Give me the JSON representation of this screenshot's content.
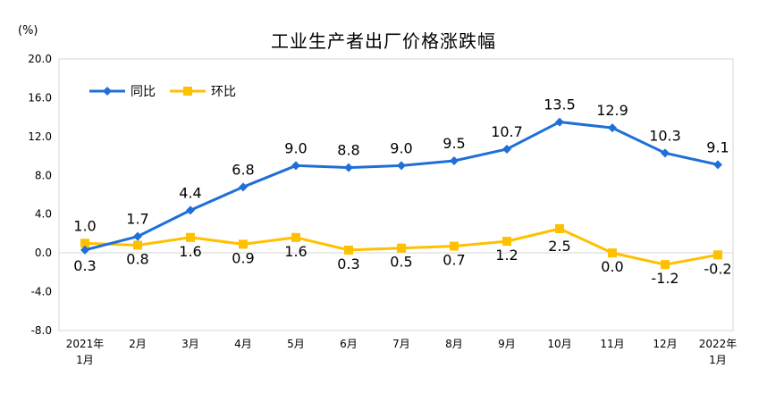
{
  "chart_data": {
    "type": "line",
    "title": "工业生产者出厂价格涨跌幅",
    "unit_label": "(%)",
    "categories": [
      [
        "2021年",
        "1月"
      ],
      [
        "2月"
      ],
      [
        "3月"
      ],
      [
        "4月"
      ],
      [
        "5月"
      ],
      [
        "6月"
      ],
      [
        "7月"
      ],
      [
        "8月"
      ],
      [
        "9月"
      ],
      [
        "10月"
      ],
      [
        "11月"
      ],
      [
        "12月"
      ],
      [
        "2022年",
        "1月"
      ]
    ],
    "ylim": [
      -8,
      20
    ],
    "yticks": [
      "20.0",
      "16.0",
      "12.0",
      "8.0",
      "4.0",
      "0.0",
      "-4.0",
      "-8.0"
    ],
    "ytick_values": [
      20,
      16,
      12,
      8,
      4,
      0,
      -4,
      -8
    ],
    "grid": false,
    "legend_position": "top-left",
    "series": [
      {
        "name": "同比",
        "color": "#1F6FD6",
        "marker": "diamond",
        "values": [
          0.3,
          1.7,
          4.4,
          6.8,
          9.0,
          8.8,
          9.0,
          9.5,
          10.7,
          13.5,
          12.9,
          10.3,
          9.1
        ],
        "labels": [
          "0.3",
          "1.7",
          "4.4",
          "6.8",
          "9.0",
          "8.8",
          "9.0",
          "9.5",
          "10.7",
          "13.5",
          "12.9",
          "10.3",
          "9.1"
        ]
      },
      {
        "name": "环比",
        "color": "#FFC000",
        "marker": "square",
        "values": [
          1.0,
          0.8,
          1.6,
          0.9,
          1.6,
          0.3,
          0.5,
          0.7,
          1.2,
          2.5,
          0.0,
          -1.2,
          -0.2
        ],
        "labels": [
          "1.0",
          "0.8",
          "1.6",
          "0.9",
          "1.6",
          "0.3",
          "0.5",
          "0.7",
          "1.2",
          "2.5",
          "0.0",
          "-1.2",
          "-0.2"
        ]
      }
    ]
  }
}
